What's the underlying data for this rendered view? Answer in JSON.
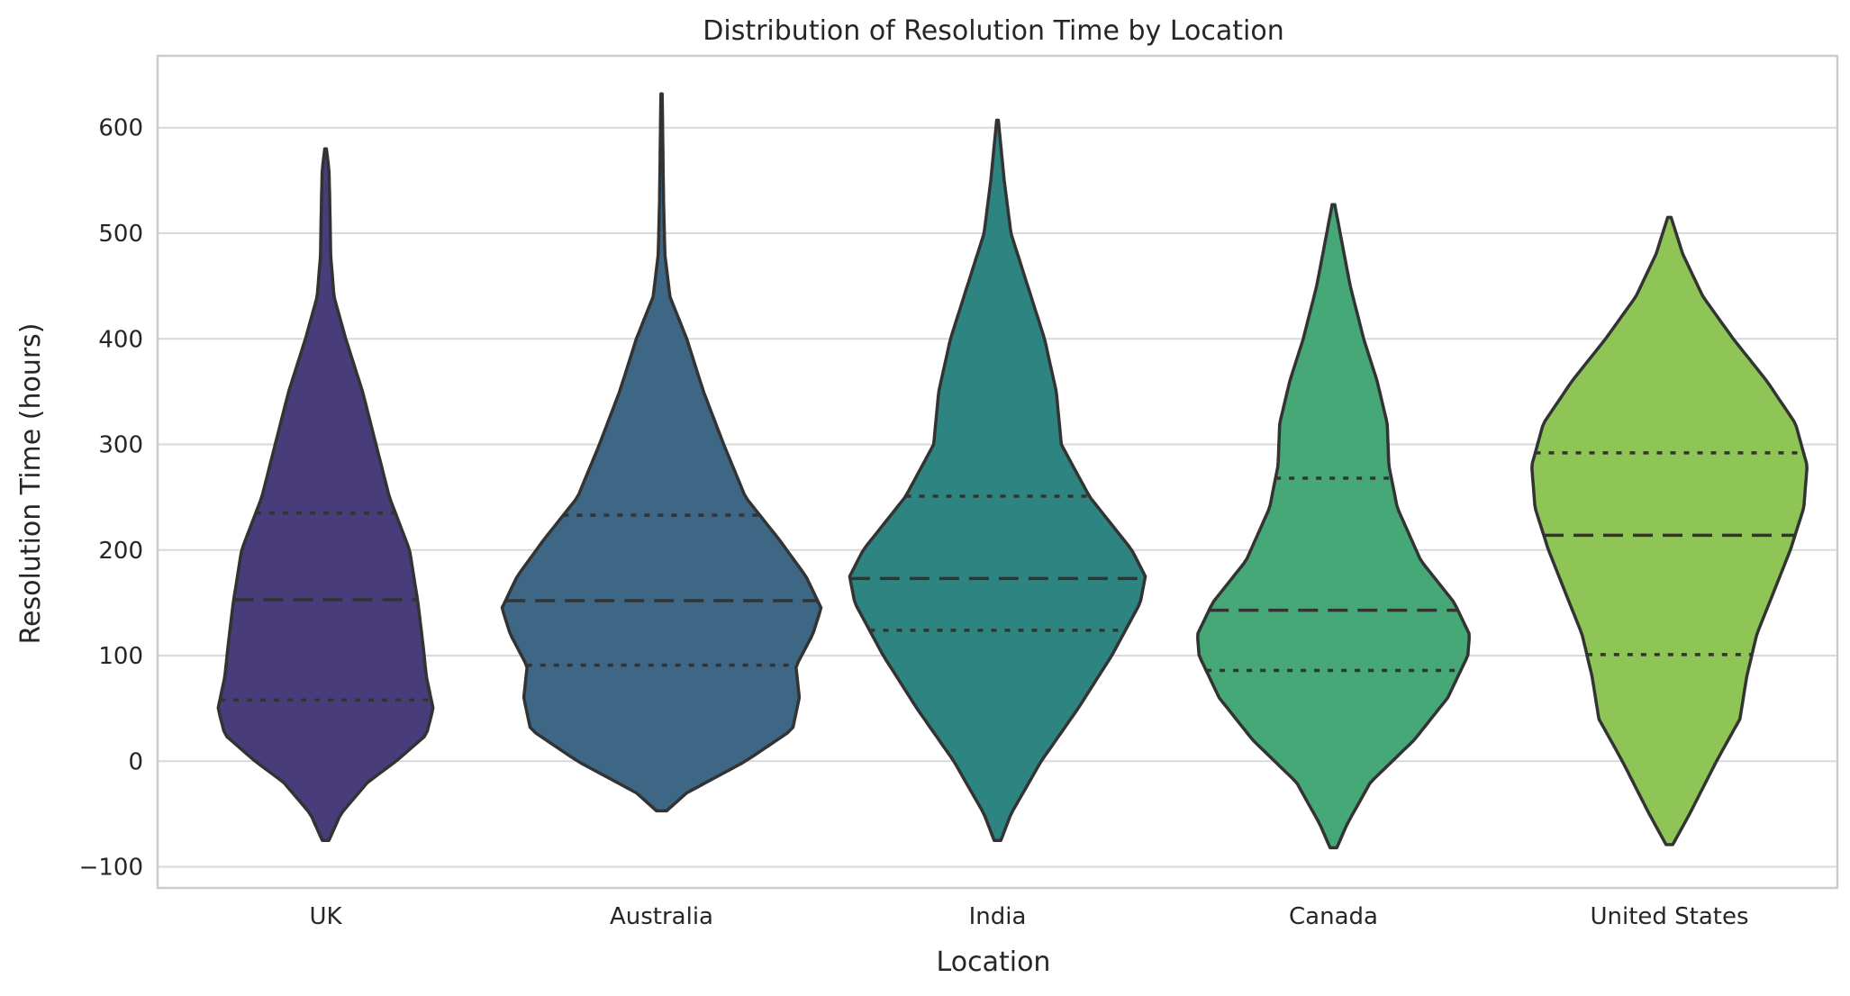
{
  "chart_data": {
    "type": "violin",
    "title": "Distribution of Resolution Time by Location",
    "xlabel": "Location",
    "ylabel": "Resolution Time (hours)",
    "ylim": [
      -120,
      668
    ],
    "yticks": [
      -100,
      0,
      100,
      200,
      300,
      400,
      500,
      600
    ],
    "ytick_labels": [
      "−100",
      "0",
      "100",
      "200",
      "300",
      "400",
      "500",
      "600"
    ],
    "grid": true,
    "categories": [
      "UK",
      "Australia",
      "India",
      "Canada",
      "United States"
    ],
    "colors": [
      "#483d7a",
      "#3d6784",
      "#2e8481",
      "#45a876",
      "#8fc556"
    ],
    "violins": [
      {
        "name": "UK",
        "min": -75,
        "max": 580,
        "q1": 58,
        "median": 153,
        "q3": 235,
        "profile": [
          [
            -75,
            0.02
          ],
          [
            -50,
            0.09
          ],
          [
            -20,
            0.25
          ],
          [
            0,
            0.42
          ],
          [
            25,
            0.6
          ],
          [
            50,
            0.64
          ],
          [
            80,
            0.6
          ],
          [
            110,
            0.58
          ],
          [
            150,
            0.55
          ],
          [
            200,
            0.5
          ],
          [
            250,
            0.38
          ],
          [
            300,
            0.3
          ],
          [
            350,
            0.22
          ],
          [
            400,
            0.12
          ],
          [
            440,
            0.05
          ],
          [
            480,
            0.03
          ],
          [
            530,
            0.025
          ],
          [
            560,
            0.02
          ],
          [
            580,
            0.005
          ]
        ]
      },
      {
        "name": "Australia",
        "min": -47,
        "max": 632,
        "q1": 91,
        "median": 152,
        "q3": 233,
        "profile": [
          [
            -47,
            0.03
          ],
          [
            -30,
            0.15
          ],
          [
            0,
            0.5
          ],
          [
            30,
            0.78
          ],
          [
            60,
            0.82
          ],
          [
            90,
            0.8
          ],
          [
            120,
            0.9
          ],
          [
            145,
            0.95
          ],
          [
            175,
            0.86
          ],
          [
            210,
            0.7
          ],
          [
            250,
            0.5
          ],
          [
            300,
            0.37
          ],
          [
            350,
            0.25
          ],
          [
            400,
            0.15
          ],
          [
            440,
            0.05
          ],
          [
            480,
            0.02
          ],
          [
            530,
            0.012
          ],
          [
            580,
            0.008
          ],
          [
            632,
            0.004
          ]
        ]
      },
      {
        "name": "India",
        "min": -75,
        "max": 607,
        "q1": 124,
        "median": 173,
        "q3": 251,
        "profile": [
          [
            -75,
            0.02
          ],
          [
            -50,
            0.08
          ],
          [
            0,
            0.26
          ],
          [
            50,
            0.48
          ],
          [
            100,
            0.68
          ],
          [
            150,
            0.85
          ],
          [
            175,
            0.88
          ],
          [
            200,
            0.8
          ],
          [
            250,
            0.55
          ],
          [
            300,
            0.38
          ],
          [
            350,
            0.35
          ],
          [
            400,
            0.28
          ],
          [
            450,
            0.18
          ],
          [
            500,
            0.08
          ],
          [
            550,
            0.04
          ],
          [
            607,
            0.005
          ]
        ]
      },
      {
        "name": "Canada",
        "min": -82,
        "max": 527,
        "q1": 86,
        "median": 143,
        "q3": 268,
        "profile": [
          [
            -82,
            0.02
          ],
          [
            -60,
            0.08
          ],
          [
            -20,
            0.22
          ],
          [
            20,
            0.48
          ],
          [
            60,
            0.68
          ],
          [
            100,
            0.8
          ],
          [
            120,
            0.81
          ],
          [
            150,
            0.72
          ],
          [
            190,
            0.52
          ],
          [
            240,
            0.38
          ],
          [
            280,
            0.33
          ],
          [
            320,
            0.32
          ],
          [
            360,
            0.26
          ],
          [
            400,
            0.18
          ],
          [
            450,
            0.1
          ],
          [
            500,
            0.04
          ],
          [
            527,
            0.008
          ]
        ]
      },
      {
        "name": "United States",
        "min": -79,
        "max": 515,
        "q1": 101,
        "median": 214,
        "q3": 292,
        "profile": [
          [
            -79,
            0.02
          ],
          [
            -50,
            0.12
          ],
          [
            0,
            0.28
          ],
          [
            40,
            0.42
          ],
          [
            80,
            0.46
          ],
          [
            120,
            0.52
          ],
          [
            160,
            0.62
          ],
          [
            200,
            0.72
          ],
          [
            240,
            0.8
          ],
          [
            280,
            0.82
          ],
          [
            320,
            0.75
          ],
          [
            360,
            0.58
          ],
          [
            400,
            0.38
          ],
          [
            440,
            0.2
          ],
          [
            480,
            0.08
          ],
          [
            515,
            0.01
          ]
        ]
      }
    ]
  }
}
